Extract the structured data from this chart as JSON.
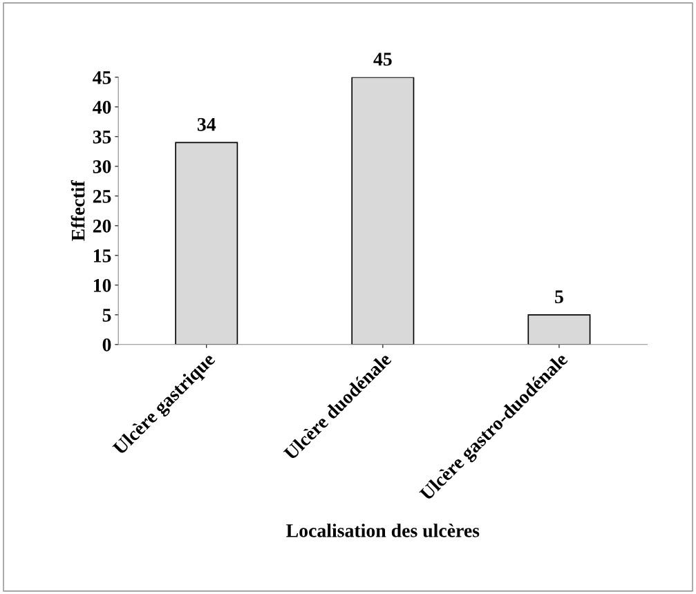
{
  "chart_data": {
    "type": "bar",
    "xlabel": "Localisation des ulcères",
    "ylabel": "Effectif",
    "categories": [
      "Ulcère gastrique",
      "Ulcère duodénale",
      "Ulcère gastro-duodénale"
    ],
    "values": [
      34,
      45,
      5
    ],
    "color": "#d9d9d9",
    "ylim": [
      0,
      45
    ],
    "yticks": [
      0,
      5,
      10,
      15,
      20,
      25,
      30,
      35,
      40,
      45
    ],
    "data_labels": true,
    "grid": false,
    "legend": false
  }
}
